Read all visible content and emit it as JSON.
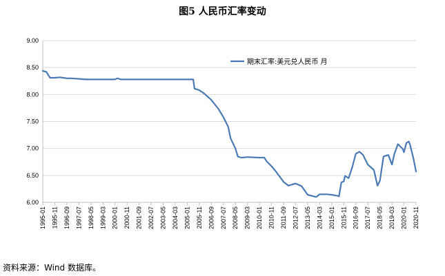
{
  "title": "图5 人民币汇率变动",
  "source": "资料来源：Wind 数据库。",
  "chart_data": {
    "type": "line",
    "title": "图5 人民币汇率变动",
    "xlabel": "",
    "ylabel": "",
    "ylim": [
      6.0,
      9.0
    ],
    "yticks": [
      "6.00",
      "6.50",
      "7.00",
      "7.50",
      "8.00",
      "8.50",
      "9.00"
    ],
    "xticks": [
      "1995-01",
      "1995-11",
      "1996-09",
      "1997-07",
      "1998-05",
      "1999-03",
      "2000-01",
      "2000-11",
      "2001-09",
      "2002-07",
      "2003-05",
      "2004-03",
      "2005-01",
      "2005-11",
      "2006-09",
      "2007-07",
      "2008-05",
      "2009-03",
      "2010-01",
      "2010-11",
      "2011-09",
      "2012-07",
      "2013-05",
      "2014-03",
      "2015-01",
      "2015-11",
      "2016-09",
      "2017-07",
      "2018-05",
      "2019-03",
      "2020-01",
      "2020-11"
    ],
    "grid": true,
    "legend_position": "top-right",
    "line_color": "#4a7ab5",
    "series": [
      {
        "name": "期末汇率:美元兑人民币 月",
        "x": [
          "1995-01",
          "1995-04",
          "1995-07",
          "1995-11",
          "1996-03",
          "1996-06",
          "1996-09",
          "1997-01",
          "1997-07",
          "1998-01",
          "1998-05",
          "1999-01",
          "1999-03",
          "2000-01",
          "2000-03",
          "2000-06",
          "2000-11",
          "2001-09",
          "2002-07",
          "2003-05",
          "2004-03",
          "2005-01",
          "2005-06",
          "2005-07",
          "2005-11",
          "2006-03",
          "2006-09",
          "2007-03",
          "2007-07",
          "2007-11",
          "2008-01",
          "2008-05",
          "2008-07",
          "2008-10",
          "2009-03",
          "2010-01",
          "2010-05",
          "2010-07",
          "2010-11",
          "2011-03",
          "2011-09",
          "2012-01",
          "2012-07",
          "2012-12",
          "2013-05",
          "2013-12",
          "2014-03",
          "2014-09",
          "2015-01",
          "2015-06",
          "2015-07",
          "2015-09",
          "2015-11",
          "2015-12",
          "2016-03",
          "2016-06",
          "2016-09",
          "2016-12",
          "2017-03",
          "2017-07",
          "2017-12",
          "2018-03",
          "2018-05",
          "2018-08",
          "2018-12",
          "2019-03",
          "2019-05",
          "2019-08",
          "2019-12",
          "2020-01",
          "2020-03",
          "2020-05",
          "2020-06",
          "2020-09",
          "2020-11"
        ],
        "y": [
          8.44,
          8.42,
          8.31,
          8.31,
          8.32,
          8.31,
          8.3,
          8.3,
          8.29,
          8.28,
          8.28,
          8.28,
          8.28,
          8.28,
          8.3,
          8.28,
          8.28,
          8.28,
          8.28,
          8.28,
          8.28,
          8.28,
          8.28,
          8.11,
          8.08,
          8.02,
          7.9,
          7.73,
          7.58,
          7.4,
          7.19,
          7.0,
          6.85,
          6.83,
          6.84,
          6.83,
          6.83,
          6.76,
          6.67,
          6.56,
          6.38,
          6.31,
          6.35,
          6.3,
          6.14,
          6.1,
          6.15,
          6.15,
          6.14,
          6.12,
          6.11,
          6.37,
          6.39,
          6.49,
          6.45,
          6.65,
          6.9,
          6.94,
          6.88,
          6.7,
          6.6,
          6.31,
          6.4,
          6.85,
          6.88,
          6.7,
          6.9,
          7.08,
          6.99,
          6.93,
          7.1,
          7.13,
          7.07,
          6.8,
          6.57
        ]
      }
    ]
  }
}
